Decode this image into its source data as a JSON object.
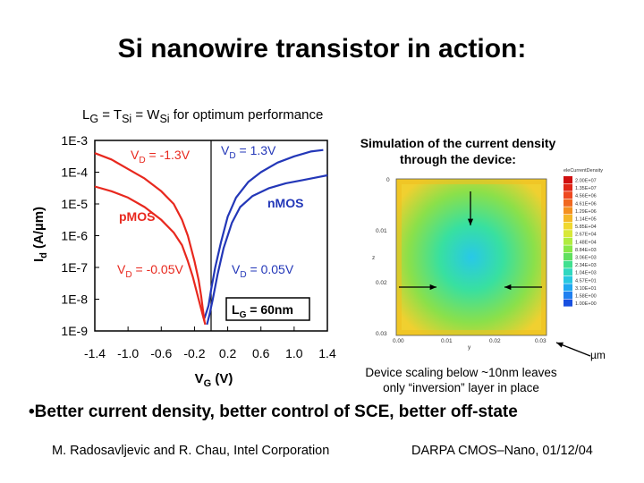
{
  "title": "Si nanowire transistor in action:",
  "constraint": {
    "pre": "L",
    "sub1": "G",
    "mid1": " = T",
    "sub2": "Si",
    "mid2": " = W",
    "sub3": "Si",
    "post": " for optimum performance"
  },
  "chart_data": {
    "type": "line",
    "ylabel_main": "I",
    "ylabel_sub": "d",
    "ylabel_unit": " (A/µm)",
    "xlabel_main": "V",
    "xlabel_sub": "G",
    "xlabel_unit": " (V)",
    "xlim": [
      -1.4,
      1.4
    ],
    "ylim_exp": [
      -9,
      -3
    ],
    "log_scale_y": true,
    "x_ticks": [
      "-1.4",
      "-1.0",
      "-0.6",
      "-0.2",
      "0.2",
      "0.6",
      "1.0",
      "1.4"
    ],
    "y_ticks": [
      "1E-3",
      "1E-4",
      "1E-5",
      "1E-6",
      "1E-7",
      "1E-8",
      "1E-9"
    ],
    "colors": {
      "pmos": "#e8281e",
      "nmos": "#2337b8"
    },
    "labels": {
      "pmos": "pMOS",
      "nmos": "nMOS",
      "vd_p_high": {
        "pre": "V",
        "sub": "D",
        "post": " = -1.3V"
      },
      "vd_n_high": {
        "pre": "V",
        "sub": "D",
        "post": " = 1.3V"
      },
      "vd_p_low": {
        "pre": "V",
        "sub": "D",
        "post": " = -0.05V"
      },
      "vd_n_low": {
        "pre": "V",
        "sub": "D",
        "post": " = 0.05V"
      },
      "lg_box": {
        "pre": "L",
        "sub": "G",
        "post": " = 60nm"
      }
    },
    "series": [
      {
        "device": "nMOS",
        "vd": 1.3,
        "x": [
          -0.08,
          -0.03,
          0.0,
          0.05,
          0.12,
          0.2,
          0.3,
          0.45,
          0.6,
          0.8,
          1.0,
          1.2,
          1.35
        ],
        "y_log10": [
          -8.6,
          -8.2,
          -7.7,
          -7.0,
          -6.2,
          -5.4,
          -4.8,
          -4.3,
          -4.0,
          -3.7,
          -3.5,
          -3.35,
          -3.3
        ]
      },
      {
        "device": "nMOS",
        "vd": 0.05,
        "x": [
          -0.05,
          -0.02,
          0.02,
          0.08,
          0.15,
          0.25,
          0.35,
          0.5,
          0.7,
          0.9,
          1.1,
          1.3,
          1.4
        ],
        "y_log10": [
          -8.8,
          -8.5,
          -8.0,
          -7.2,
          -6.4,
          -5.6,
          -5.1,
          -4.75,
          -4.5,
          -4.35,
          -4.25,
          -4.15,
          -4.1
        ]
      },
      {
        "device": "pMOS",
        "vd": -1.3,
        "x": [
          -1.4,
          -1.2,
          -1.0,
          -0.8,
          -0.6,
          -0.45,
          -0.35,
          -0.28,
          -0.2,
          -0.15,
          -0.12,
          -0.1,
          -0.08
        ],
        "y_log10": [
          -3.4,
          -3.6,
          -3.9,
          -4.2,
          -4.6,
          -5.0,
          -5.5,
          -6.0,
          -6.8,
          -7.4,
          -7.9,
          -8.3,
          -8.7
        ]
      },
      {
        "device": "pMOS",
        "vd": -0.05,
        "x": [
          -1.4,
          -1.2,
          -1.0,
          -0.8,
          -0.6,
          -0.45,
          -0.35,
          -0.28,
          -0.22,
          -0.17,
          -0.13,
          -0.1,
          -0.07
        ],
        "y_log10": [
          -4.45,
          -4.6,
          -4.8,
          -5.1,
          -5.5,
          -5.9,
          -6.3,
          -6.8,
          -7.3,
          -7.8,
          -8.2,
          -8.5,
          -8.8
        ]
      }
    ]
  },
  "simulation": {
    "caption_line1": "Simulation of the current density",
    "caption_line2": "through the device:",
    "axis_y_top": "0",
    "axis_y_mid1": "0.01",
    "axis_y_mid2": "0.02",
    "axis_y_bot": "0.03",
    "axis_z_label": "z",
    "axis_x_0": "0.00",
    "axis_x_1": "0.01",
    "axis_x_2": "0.02",
    "axis_x_3": "0.03",
    "axis_x_label": "y",
    "legend_title": "eleCurrentDensity",
    "legend_values": [
      "2.00E+07",
      "1.35E+07",
      "4.56E+06",
      "4.61E+06",
      "1.29E+06",
      "1.14E+05",
      "5.85E+04",
      "2.67E+04",
      "1.48E+04",
      "8.84E+03",
      "3.06E+03",
      "2.34E+03",
      "1.04E+03",
      "4.57E+01",
      "3.10E+01",
      "1.58E+00",
      "1.00E+00"
    ],
    "unit": "µm",
    "note_line1": "Device scaling below ~10nm leaves",
    "note_line2": "only “inversion” layer in place"
  },
  "bullet": "•Better current density, better control of SCE, better off-state",
  "footer_left": "M. Radosavljevic and R. Chau, Intel Corporation",
  "footer_right": "DARPA CMOS–Nano, 01/12/04"
}
